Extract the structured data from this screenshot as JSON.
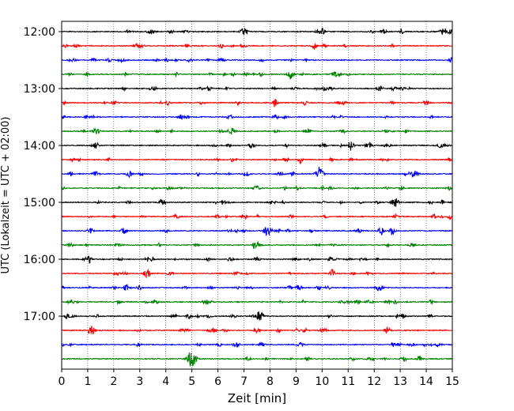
{
  "chart_data": {
    "type": "line",
    "title": "",
    "xlabel": "Zeit  [min]",
    "ylabel": "UTC (Lokalzeit = UTC + 02:00)",
    "xlim": [
      0,
      15
    ],
    "x_ticks": [
      0,
      1,
      2,
      3,
      4,
      5,
      6,
      7,
      8,
      9,
      10,
      11,
      12,
      13,
      14,
      15
    ],
    "x_tick_labels": [
      "0",
      "1",
      "2",
      "3",
      "4",
      "5",
      "6",
      "7",
      "8",
      "9",
      "10",
      "11",
      "12",
      "13",
      "14",
      "15"
    ],
    "y_tick_labels": [
      "12:00",
      "13:00",
      "14:00",
      "15:00",
      "16:00",
      "17:00"
    ],
    "grid": "vertical dotted at each minute",
    "legend": "none",
    "color_cycle": [
      "#000000",
      "#ff0000",
      "#0000ff",
      "#008000"
    ],
    "trace_interval_minutes": 15,
    "series": [
      {
        "start": "12:00",
        "color": "#000000",
        "events": [
          {
            "x": 7.0,
            "amp": 0.7
          },
          {
            "x": 10.0,
            "amp": 0.6
          },
          {
            "x": 14.7,
            "amp": 0.5
          }
        ]
      },
      {
        "start": "12:15",
        "color": "#ff0000",
        "events": []
      },
      {
        "start": "12:30",
        "color": "#0000ff",
        "events": []
      },
      {
        "start": "12:45",
        "color": "#008000",
        "events": [
          {
            "x": 8.8,
            "amp": 0.6
          },
          {
            "x": 10.5,
            "amp": 0.5
          }
        ]
      },
      {
        "start": "13:00",
        "color": "#000000",
        "events": [
          {
            "x": 12.2,
            "amp": 0.5
          }
        ]
      },
      {
        "start": "13:15",
        "color": "#ff0000",
        "events": [
          {
            "x": 8.2,
            "amp": 0.5
          },
          {
            "x": 4.1,
            "amp": 0.4
          }
        ]
      },
      {
        "start": "13:30",
        "color": "#0000ff",
        "events": []
      },
      {
        "start": "13:45",
        "color": "#008000",
        "events": [
          {
            "x": 6.5,
            "amp": 0.6
          },
          {
            "x": 1.3,
            "amp": 0.4
          }
        ]
      },
      {
        "start": "14:00",
        "color": "#000000",
        "events": [
          {
            "x": 1.3,
            "amp": 0.6
          },
          {
            "x": 7.3,
            "amp": 0.5
          },
          {
            "x": 12.5,
            "amp": 0.5
          }
        ]
      },
      {
        "start": "14:15",
        "color": "#ff0000",
        "events": [
          {
            "x": 8.6,
            "amp": 0.4
          }
        ]
      },
      {
        "start": "14:30",
        "color": "#0000ff",
        "events": [
          {
            "x": 9.9,
            "amp": 1.0
          },
          {
            "x": 2.6,
            "amp": 0.5
          },
          {
            "x": 7.1,
            "amp": 0.5
          },
          {
            "x": 13.5,
            "amp": 0.5
          }
        ]
      },
      {
        "start": "14:45",
        "color": "#008000",
        "events": []
      },
      {
        "start": "15:00",
        "color": "#000000",
        "events": [
          {
            "x": 12.8,
            "amp": 0.8
          },
          {
            "x": 6.2,
            "amp": 0.4
          }
        ]
      },
      {
        "start": "15:15",
        "color": "#ff0000",
        "events": [
          {
            "x": 7.0,
            "amp": 0.5
          }
        ]
      },
      {
        "start": "15:30",
        "color": "#0000ff",
        "events": [
          {
            "x": 7.9,
            "amp": 0.8
          },
          {
            "x": 2.4,
            "amp": 0.5
          },
          {
            "x": 12.7,
            "amp": 0.5
          }
        ]
      },
      {
        "start": "15:45",
        "color": "#008000",
        "events": []
      },
      {
        "start": "16:00",
        "color": "#000000",
        "events": [
          {
            "x": 1.0,
            "amp": 0.6
          },
          {
            "x": 3.3,
            "amp": 0.4
          },
          {
            "x": 7.5,
            "amp": 0.4
          }
        ]
      },
      {
        "start": "16:15",
        "color": "#ff0000",
        "events": [
          {
            "x": 3.3,
            "amp": 0.6
          },
          {
            "x": 10.4,
            "amp": 0.4
          }
        ]
      },
      {
        "start": "16:30",
        "color": "#0000ff",
        "events": [
          {
            "x": 9.1,
            "amp": 0.5
          },
          {
            "x": 12.2,
            "amp": 0.7
          }
        ]
      },
      {
        "start": "16:45",
        "color": "#008000",
        "events": [
          {
            "x": 3.6,
            "amp": 0.4
          },
          {
            "x": 5.5,
            "amp": 0.4
          }
        ]
      },
      {
        "start": "17:00",
        "color": "#000000",
        "events": [
          {
            "x": 7.6,
            "amp": 0.6
          },
          {
            "x": 4.3,
            "amp": 0.4
          },
          {
            "x": 13.1,
            "amp": 0.4
          }
        ]
      },
      {
        "start": "17:15",
        "color": "#ff0000",
        "events": [
          {
            "x": 1.1,
            "amp": 0.6
          },
          {
            "x": 12.5,
            "amp": 0.4
          }
        ]
      },
      {
        "start": "17:30",
        "color": "#0000ff",
        "events": [
          {
            "x": 6.7,
            "amp": 0.5
          }
        ]
      },
      {
        "start": "17:45",
        "color": "#008000",
        "events": [
          {
            "x": 5.0,
            "amp": 1.2
          }
        ]
      }
    ]
  }
}
